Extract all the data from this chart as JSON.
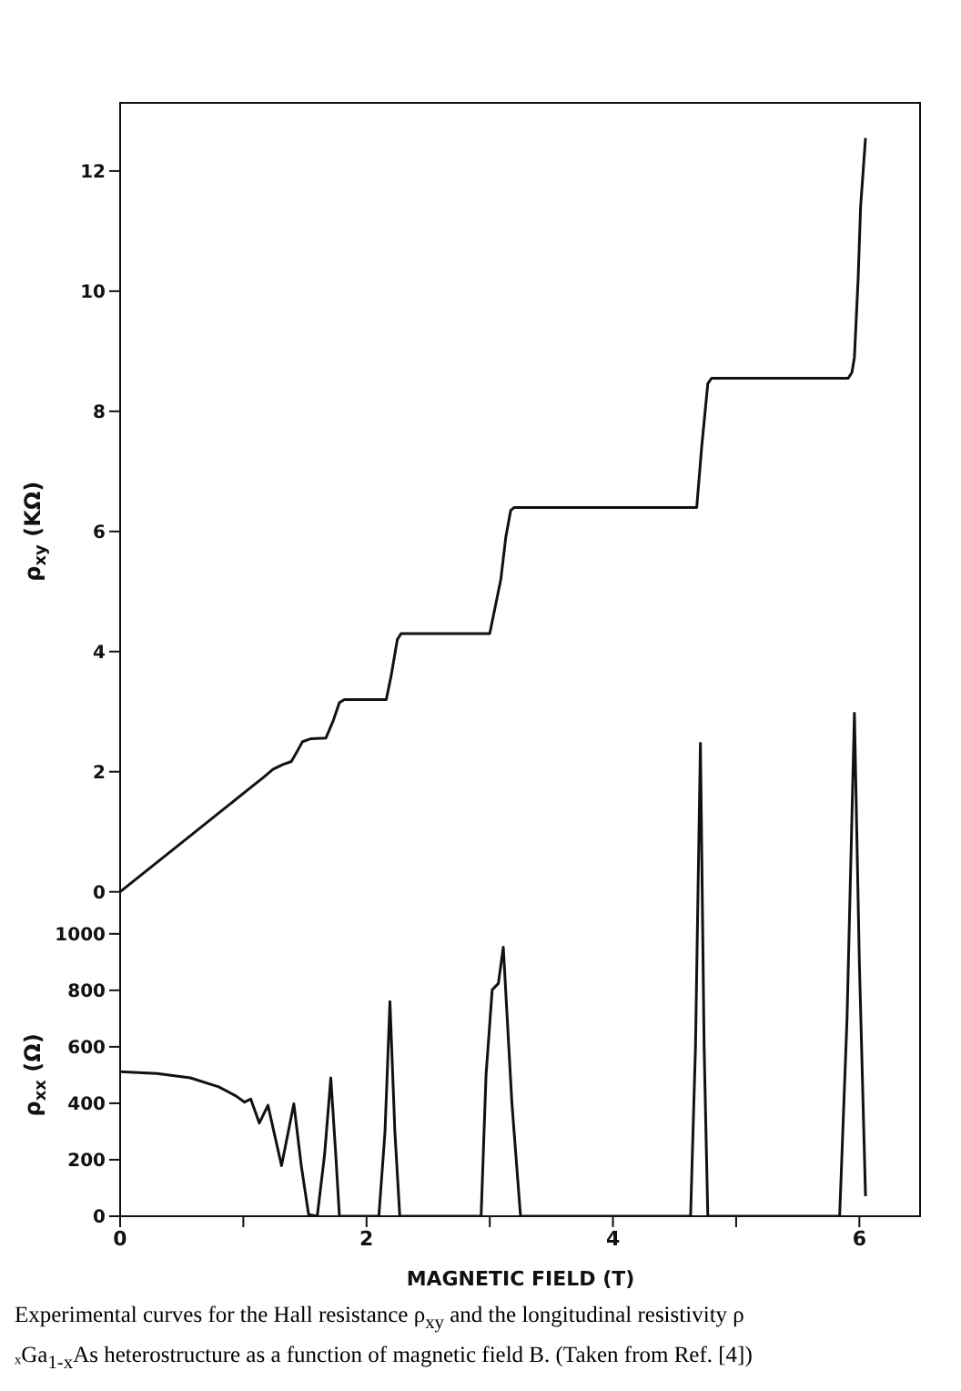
{
  "chart_data": [
    {
      "type": "line",
      "ylabel": "ρ$_{xy}$ (KΩ)",
      "xlim": [
        0,
        6.5
      ],
      "ylim": [
        -5.4,
        13.15
      ],
      "yticks": [
        0,
        2,
        4,
        6,
        8,
        10,
        12
      ],
      "tick_labels": "y",
      "x": [
        0,
        0.5,
        1.08,
        1.16,
        1.24,
        1.32,
        1.39,
        1.44,
        1.48,
        1.55,
        1.67,
        1.73,
        1.78,
        1.82,
        2.16,
        2.2,
        2.25,
        2.28,
        3.0,
        3.04,
        3.09,
        3.13,
        3.17,
        3.2,
        4.68,
        4.72,
        4.77,
        4.8,
        5.91,
        5.94,
        5.96,
        5.99,
        6.01,
        6.05
      ],
      "series": [
        {
          "color": "#111111",
          "values": [
            0,
            0.82,
            1.77,
            1.9,
            2.04,
            2.12,
            2.17,
            2.35,
            2.5,
            2.55,
            2.56,
            2.85,
            3.15,
            3.2,
            3.2,
            3.6,
            4.2,
            4.3,
            4.3,
            4.7,
            5.2,
            5.9,
            6.35,
            6.4,
            6.4,
            7.4,
            8.46,
            8.55,
            8.55,
            8.65,
            8.9,
            10.2,
            11.4,
            12.55
          ]
        }
      ]
    },
    {
      "type": "line",
      "xlabel": "MAGNETIC FIELD    (T)",
      "ylabel": "ρ$_{xx}$ (Ω)",
      "xlim": [
        0,
        6.5
      ],
      "ylim": [
        0,
        3946
      ],
      "xticks": [
        0,
        {
          "value": 1,
          "label": null
        },
        2,
        {
          "value": 3,
          "label": null
        },
        4,
        {
          "value": 5,
          "label": null
        },
        6
      ],
      "yticks": [
        0,
        200,
        400,
        600,
        800,
        1000
      ],
      "x": [
        0,
        0.3,
        0.57,
        0.8,
        0.94,
        1.01,
        1.06,
        1.13,
        1.2,
        1.31,
        1.41,
        1.47,
        1.53,
        1.6,
        1.66,
        1.71,
        1.75,
        1.78,
        2.1,
        2.15,
        2.19,
        2.23,
        2.27,
        2.93,
        2.97,
        3.02,
        3.07,
        3.11,
        3.18,
        3.25,
        4.63,
        4.67,
        4.71,
        4.74,
        4.77,
        5.84,
        5.9,
        5.96,
        6.0,
        6.05
      ],
      "series": [
        {
          "color": "#111111",
          "values": [
            512,
            505,
            490,
            458,
            426,
            404,
            415,
            330,
            393,
            179,
            398,
            180,
            6,
            0,
            220,
            490,
            220,
            0,
            0,
            300,
            760,
            300,
            0,
            0,
            500,
            802,
            824,
            953,
            400,
            0,
            0,
            600,
            1675,
            600,
            0,
            0,
            700,
            1781,
            900,
            71
          ]
        }
      ],
      "annotations": [
        "Experimental curves for the Hall resistance ρ$_{xy}$ and the longitudinal resistivity ρ",
        "ₓGa$_{1-x}$As heterostructure as a function of magnetic field B. (Taken from Ref. [4])"
      ]
    }
  ]
}
